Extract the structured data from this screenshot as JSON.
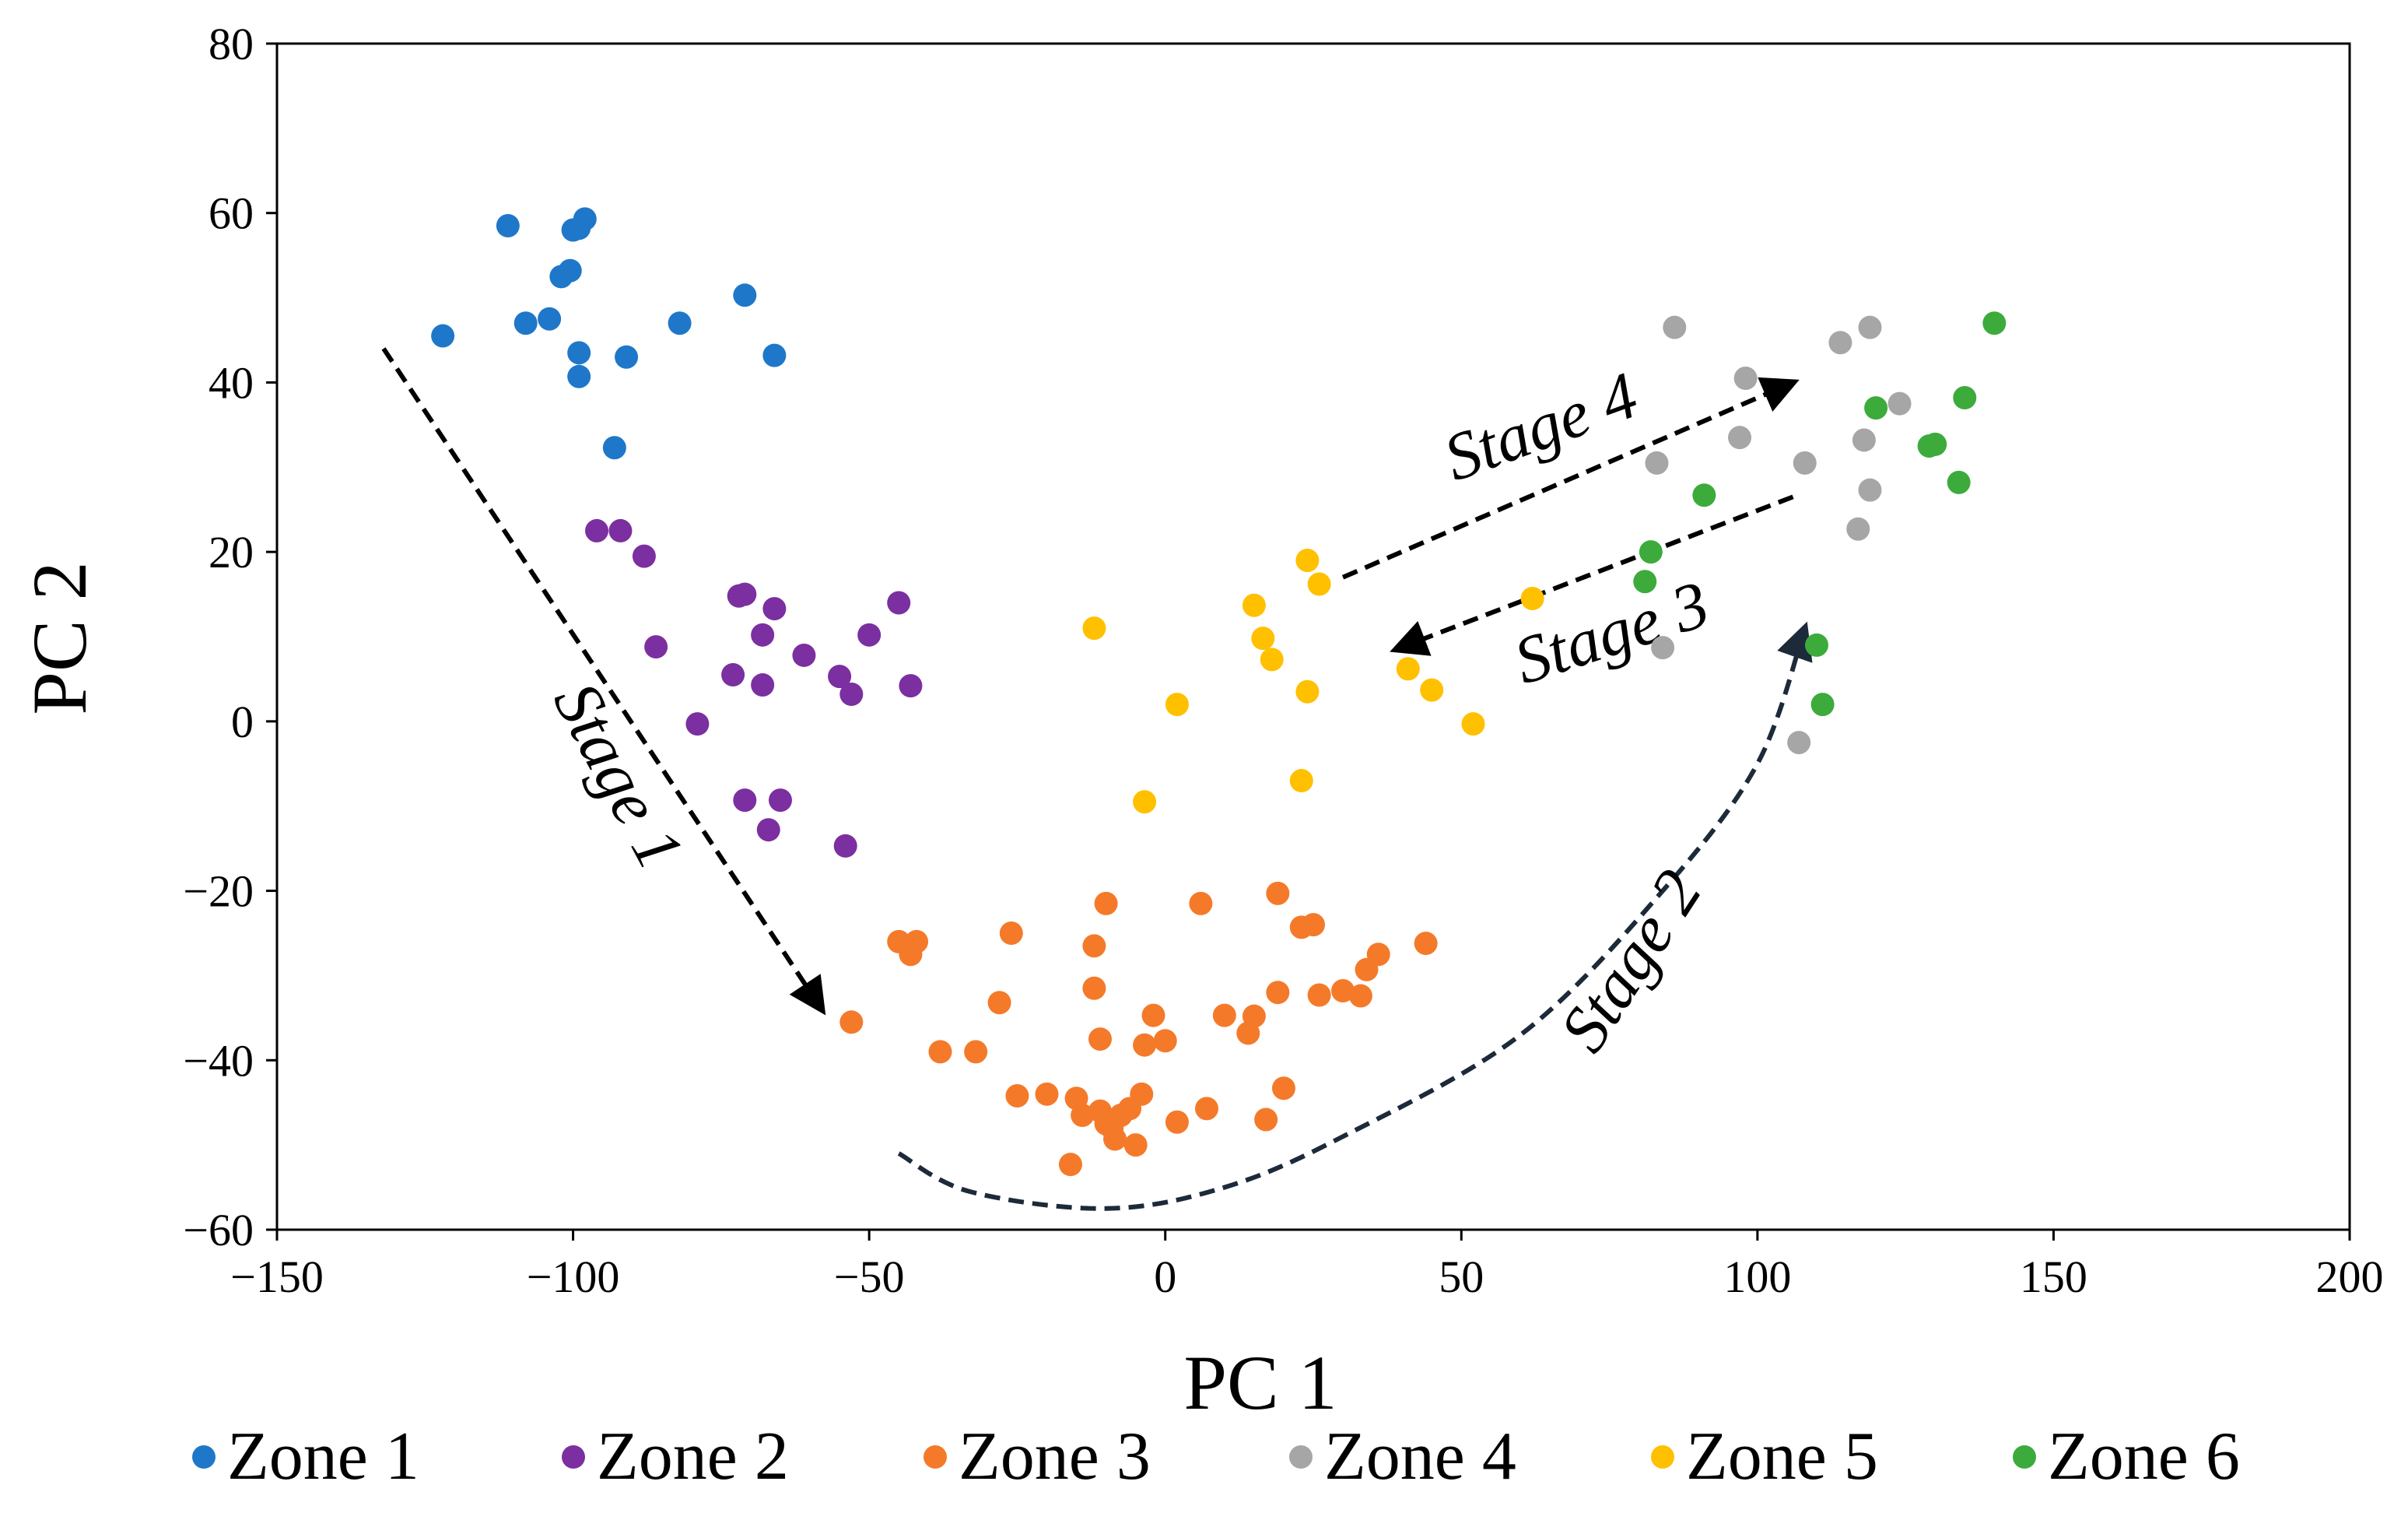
{
  "chart_data": {
    "type": "scatter",
    "title": "",
    "xlabel": "PC 1",
    "ylabel": "PC 2",
    "xlim": [
      -150,
      200
    ],
    "ylim": [
      -60,
      80
    ],
    "x_ticks": [
      -150,
      -100,
      -50,
      0,
      50,
      100,
      150,
      200
    ],
    "y_ticks": [
      -60,
      -40,
      -20,
      0,
      20,
      40,
      60,
      80
    ],
    "x_tick_labels": [
      "−150",
      "−100",
      "−50",
      "0",
      "50",
      "100",
      "150",
      "200"
    ],
    "y_tick_labels": [
      "−60",
      "−40",
      "−20",
      "0",
      "20",
      "40",
      "60",
      "80"
    ],
    "grid": false,
    "legend_position": "bottom",
    "series": [
      {
        "name": "Zone 1",
        "color": "#1f77c9",
        "points": [
          [
            -122,
            45.5
          ],
          [
            -111,
            58.5
          ],
          [
            -108,
            47
          ],
          [
            -104,
            47.5
          ],
          [
            -102,
            52.5
          ],
          [
            -100.5,
            53.2
          ],
          [
            -100,
            58
          ],
          [
            -99,
            58.2
          ],
          [
            -98,
            59.3
          ],
          [
            -99,
            40.7
          ],
          [
            -99,
            43.5
          ],
          [
            -91,
            43
          ],
          [
            -82,
            47
          ],
          [
            -71,
            50.3
          ],
          [
            -66,
            43.2
          ],
          [
            -93,
            32.3
          ]
        ]
      },
      {
        "name": "Zone 2",
        "color": "#7b2fa0",
        "points": [
          [
            -96,
            22.5
          ],
          [
            -92,
            22.5
          ],
          [
            -88,
            19.5
          ],
          [
            -86,
            8.8
          ],
          [
            -79,
            -0.3
          ],
          [
            -73,
            5.5
          ],
          [
            -72,
            14.8
          ],
          [
            -71,
            15
          ],
          [
            -68,
            10.2
          ],
          [
            -68,
            4.3
          ],
          [
            -66,
            13.3
          ],
          [
            -61,
            7.8
          ],
          [
            -55,
            5.3
          ],
          [
            -53,
            3.2
          ],
          [
            -50,
            10.2
          ],
          [
            -45,
            14
          ],
          [
            -43,
            4.2
          ],
          [
            -71,
            -9.3
          ],
          [
            -65,
            -9.3
          ],
          [
            -67,
            -12.8
          ],
          [
            -54,
            -14.7
          ]
        ]
      },
      {
        "name": "Zone 3",
        "color": "#f47a2a",
        "points": [
          [
            -53,
            -35.5
          ],
          [
            -45,
            -26
          ],
          [
            -42,
            -26
          ],
          [
            -43,
            -27.5
          ],
          [
            -38,
            -39
          ],
          [
            -32,
            -39
          ],
          [
            -28,
            -33.2
          ],
          [
            -26,
            -25
          ],
          [
            -25,
            -44.2
          ],
          [
            -20,
            -44
          ],
          [
            -16,
            -52.3
          ],
          [
            -15,
            -44.5
          ],
          [
            -14,
            -46.5
          ],
          [
            -12,
            -26.5
          ],
          [
            -12,
            -31.5
          ],
          [
            -11,
            -37.5
          ],
          [
            -11,
            -46
          ],
          [
            -10,
            -21.5
          ],
          [
            -10,
            -47.5
          ],
          [
            -9,
            -48
          ],
          [
            -8.5,
            -49.3
          ],
          [
            -7.5,
            -46.5
          ],
          [
            -6,
            -45.7
          ],
          [
            -5,
            -50
          ],
          [
            -4,
            -44
          ],
          [
            -3.5,
            -38.2
          ],
          [
            -2,
            -34.7
          ],
          [
            0,
            -37.7
          ],
          [
            2,
            -47.3
          ],
          [
            6,
            -21.5
          ],
          [
            7,
            -45.7
          ],
          [
            10,
            -34.7
          ],
          [
            14,
            -36.8
          ],
          [
            15,
            -34.8
          ],
          [
            17,
            -47
          ],
          [
            19,
            -20.3
          ],
          [
            19,
            -32
          ],
          [
            20,
            -43.3
          ],
          [
            23,
            -24.3
          ],
          [
            25,
            -24
          ],
          [
            26,
            -32.3
          ],
          [
            30,
            -31.8
          ],
          [
            33,
            -32.4
          ],
          [
            34,
            -29.3
          ],
          [
            36,
            -27.5
          ],
          [
            44,
            -26.2
          ]
        ]
      },
      {
        "name": "Zone 4",
        "color": "#a6a6a6",
        "points": [
          [
            86,
            46.5
          ],
          [
            83,
            30.5
          ],
          [
            84,
            8.7
          ],
          [
            97,
            33.5
          ],
          [
            98,
            40.5
          ],
          [
            108,
            30.5
          ],
          [
            107,
            -2.5
          ],
          [
            114,
            44.7
          ],
          [
            118,
            33.2
          ],
          [
            119,
            46.5
          ],
          [
            119,
            27.3
          ],
          [
            117,
            22.7
          ],
          [
            124,
            37.5
          ]
        ]
      },
      {
        "name": "Zone 5",
        "color": "#ffc000",
        "points": [
          [
            -12,
            11
          ],
          [
            -3.5,
            -9.5
          ],
          [
            2,
            2
          ],
          [
            15,
            13.7
          ],
          [
            16.5,
            9.8
          ],
          [
            18,
            7.3
          ],
          [
            24,
            19
          ],
          [
            26,
            16.2
          ],
          [
            24,
            3.5
          ],
          [
            23,
            -7
          ],
          [
            41,
            6.2
          ],
          [
            45,
            3.7
          ],
          [
            52,
            -0.3
          ],
          [
            62,
            14.5
          ]
        ]
      },
      {
        "name": "Zone 6",
        "color": "#3cab3c",
        "points": [
          [
            82,
            20
          ],
          [
            81,
            16.5
          ],
          [
            91,
            26.7
          ],
          [
            110,
            9
          ],
          [
            111,
            2
          ],
          [
            120,
            37
          ],
          [
            129,
            32.5
          ],
          [
            130,
            32.7
          ],
          [
            135,
            38.2
          ],
          [
            134,
            28.2
          ],
          [
            140,
            47
          ]
        ]
      }
    ],
    "annotations": [
      {
        "text": "Stage 1",
        "path": [
          [
            -132,
            44
          ],
          [
            -58,
            -34
          ]
        ]
      },
      {
        "text": "Stage 2",
        "path": [
          [
            -45,
            -51
          ],
          [
            -33,
            -55.5
          ],
          [
            -10,
            -57.5
          ],
          [
            10,
            -55
          ],
          [
            30,
            -49
          ],
          [
            60,
            -37
          ],
          [
            84,
            -20
          ],
          [
            100,
            -5
          ],
          [
            108,
            11
          ]
        ]
      },
      {
        "text": "Stage 3",
        "path": [
          [
            106,
            26.5
          ],
          [
            39,
            8.5
          ]
        ]
      },
      {
        "text": "Stage 4",
        "path": [
          [
            30,
            17
          ],
          [
            106,
            40
          ]
        ]
      }
    ]
  }
}
